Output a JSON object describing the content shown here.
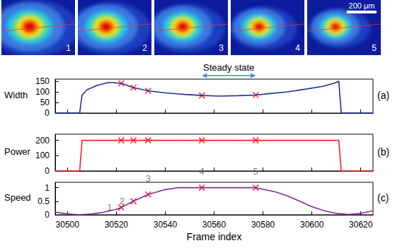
{
  "image_strip": {
    "labels": [
      "1",
      "2",
      "3",
      "4",
      "5"
    ],
    "scale_bar": "200 μm"
  },
  "chart_data": [
    {
      "type": "line",
      "y_label": "Width",
      "panel_label": "(a)",
      "annotation": "Steady state",
      "annotation_range": [
        30555,
        30577
      ],
      "x": [
        30495,
        30505,
        30506,
        30508,
        30512,
        30517,
        30522,
        30527,
        30533,
        30540,
        30548,
        30555,
        30562,
        30570,
        30577,
        30583,
        30590,
        30597,
        30604,
        30609,
        30611,
        30612,
        30625
      ],
      "values": [
        0,
        0,
        85,
        110,
        130,
        145,
        140,
        120,
        105,
        95,
        88,
        83,
        80,
        82,
        85,
        92,
        100,
        112,
        125,
        140,
        150,
        0,
        0
      ],
      "color": "#1f2f9f",
      "markers": {
        "x": [
          30522,
          30527,
          30533,
          30555,
          30577
        ],
        "values": [
          140,
          120,
          105,
          83,
          85
        ],
        "color": "#ff0000",
        "marker": "x"
      },
      "xlim": [
        30495,
        30625
      ],
      "xticks": [
        30500,
        30520,
        30540,
        30560,
        30580,
        30600,
        30620
      ],
      "ylim": [
        0,
        160
      ],
      "yticks": [
        0,
        50,
        100,
        150
      ],
      "tick_labels": "y",
      "grid": false
    },
    {
      "type": "line",
      "y_label": "Power",
      "panel_label": "(b)",
      "x": [
        30495,
        30505,
        30506,
        30611,
        30612,
        30625
      ],
      "values": [
        0,
        0,
        200,
        200,
        0,
        0
      ],
      "color": "#ff2020",
      "markers": {
        "x": [
          30522,
          30527,
          30533,
          30555,
          30577
        ],
        "values": [
          200,
          200,
          200,
          200,
          200
        ],
        "color": "#ff0000",
        "marker": "x"
      },
      "xlim": [
        30495,
        30625
      ],
      "xticks": [
        30500,
        30520,
        30540,
        30560,
        30580,
        30600,
        30620
      ],
      "ylim": [
        0,
        240
      ],
      "yticks": [
        0,
        100,
        200
      ],
      "tick_labels": "y",
      "grid": false
    },
    {
      "type": "line",
      "y_label": "Speed",
      "panel_label": "(c)",
      "x_label": "Frame index",
      "x": [
        30495,
        30500,
        30505,
        30510,
        30515,
        30520,
        30522,
        30527,
        30533,
        30540,
        30545,
        30577,
        30585,
        30590,
        30595,
        30600,
        30605,
        30610,
        30615,
        30620,
        30625
      ],
      "values": [
        0.1,
        0.03,
        0,
        0.03,
        0.1,
        0.2,
        0.27,
        0.5,
        0.75,
        0.93,
        1.0,
        1.0,
        0.85,
        0.7,
        0.5,
        0.3,
        0.15,
        0.05,
        0.01,
        0.05,
        0.15
      ],
      "color": "#7a2f9f",
      "markers": {
        "x": [
          30522,
          30527,
          30533,
          30555,
          30577
        ],
        "values": [
          0.27,
          0.5,
          0.75,
          1.0,
          1.0
        ],
        "color": "#ff0000",
        "marker": "x",
        "point_labels": [
          "1",
          "2",
          "3",
          "4",
          "5"
        ]
      },
      "xlim": [
        30495,
        30625
      ],
      "xticks": [
        30500,
        30520,
        30540,
        30560,
        30580,
        30600,
        30620
      ],
      "ylim": [
        0,
        1.2
      ],
      "yticks": [
        0,
        0.5,
        1
      ],
      "tick_labels": true,
      "grid": false
    }
  ]
}
